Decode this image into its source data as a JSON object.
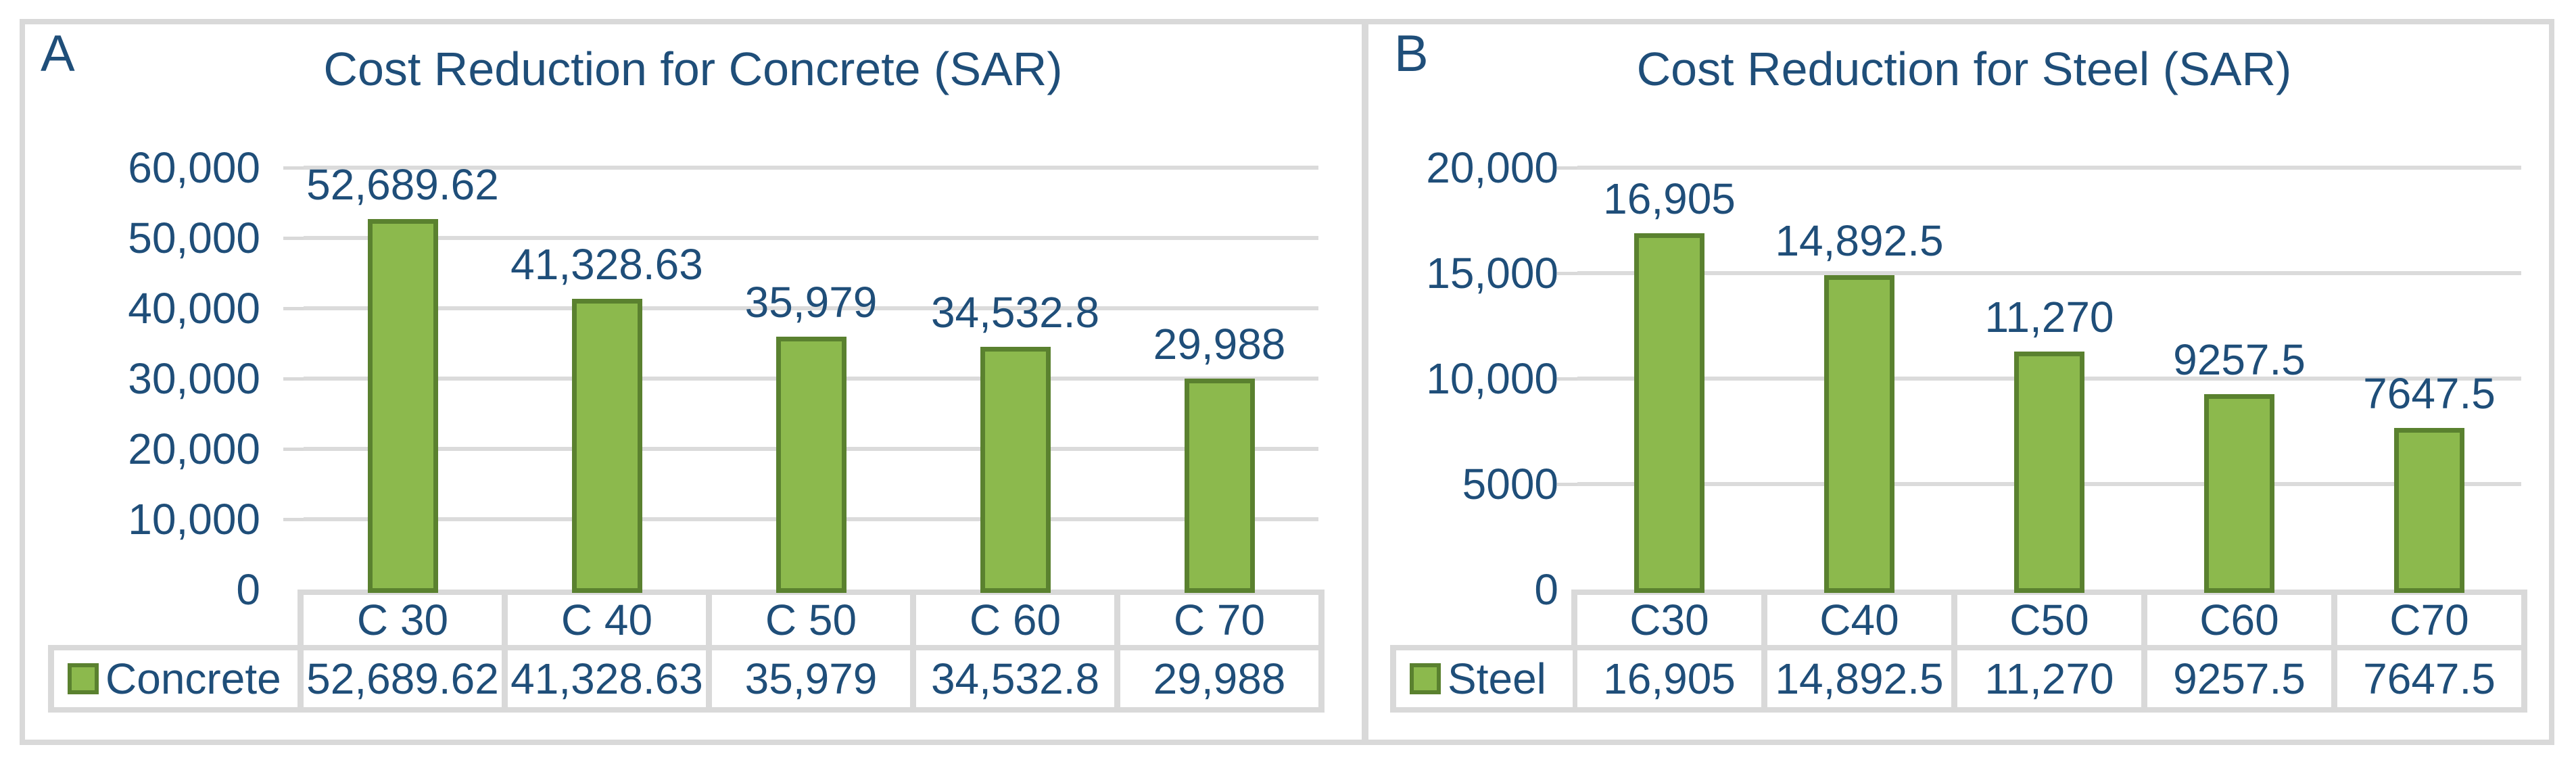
{
  "colors": {
    "text": "#1F4E79",
    "bar_fill": "#8CB94D",
    "bar_border": "#5A812F",
    "grid": "#DBDBDB",
    "table_border": "#D9D9D9",
    "frame_border": "#D9D9D9",
    "background": "#FFFFFF"
  },
  "chart_data": [
    {
      "type": "bar",
      "panel_label": "A",
      "title": "Cost Reduction for Concrete (SAR)",
      "xlabel": "",
      "ylabel": "",
      "grid": true,
      "legend_position": "table-left",
      "categories": [
        "C 30",
        "C 40",
        "C 50",
        "C 60",
        "C 70"
      ],
      "series": [
        {
          "name": "Concrete",
          "values": [
            52689.62,
            41328.63,
            35979,
            34532.8,
            29988
          ]
        }
      ],
      "value_labels": [
        "52,689.62",
        "41,328.63",
        "35,979",
        "34,532.8",
        "29,988"
      ],
      "ylim": [
        0,
        60000
      ],
      "y_ticks": [
        {
          "v": 60000,
          "label": "60,000"
        },
        {
          "v": 50000,
          "label": "50,000"
        },
        {
          "v": 40000,
          "label": "40,000"
        },
        {
          "v": 30000,
          "label": "30,000"
        },
        {
          "v": 20000,
          "label": "20,000"
        },
        {
          "v": 10000,
          "label": "10,000"
        },
        {
          "v": 0,
          "label": "0"
        }
      ]
    },
    {
      "type": "bar",
      "panel_label": "B",
      "title": "Cost Reduction for Steel (SAR)",
      "xlabel": "",
      "ylabel": "",
      "grid": true,
      "legend_position": "table-left",
      "categories": [
        "C30",
        "C40",
        "C50",
        "C60",
        "C70"
      ],
      "series": [
        {
          "name": "Steel",
          "values": [
            16905,
            14892.5,
            11270,
            9257.5,
            7647.5
          ]
        }
      ],
      "value_labels": [
        "16,905",
        "14,892.5",
        "11,270",
        "9257.5",
        "7647.5"
      ],
      "ylim": [
        0,
        20000
      ],
      "y_ticks": [
        {
          "v": 20000,
          "label": "20,000"
        },
        {
          "v": 15000,
          "label": "15,000"
        },
        {
          "v": 10000,
          "label": "10,000"
        },
        {
          "v": 5000,
          "label": "5000"
        },
        {
          "v": 0,
          "label": "0"
        }
      ]
    }
  ]
}
